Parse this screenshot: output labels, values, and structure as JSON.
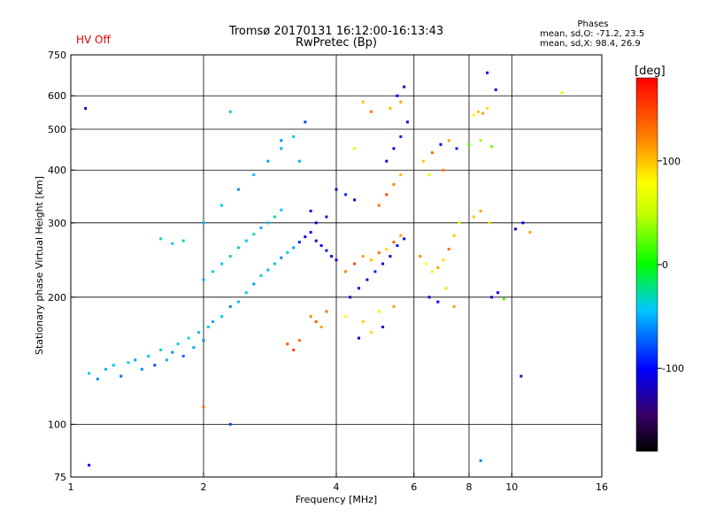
{
  "chart_data": {
    "type": "scatter",
    "title": "Tromsø 20170131 16:12:00-16:13:43",
    "subtitle": "RwPretec (Bp)",
    "status": "HV Off",
    "xlabel": "Frequency [MHz]",
    "ylabel": "Stationary phase Virtual Height [km]",
    "xscale": "log",
    "yscale": "log",
    "xlim": [
      1,
      16
    ],
    "ylim": [
      75,
      750
    ],
    "xticks": [
      1,
      2,
      4,
      6,
      8,
      10,
      16
    ],
    "xtick_labels": [
      "1",
      "2",
      "4",
      "6",
      "8",
      "10",
      "16"
    ],
    "xgrid": [
      2,
      4,
      6,
      8,
      10
    ],
    "yticks": [
      75,
      100,
      200,
      300,
      400,
      500,
      600,
      750
    ],
    "ytick_labels": [
      "75",
      "100",
      "200",
      "300",
      "400",
      "500",
      "600",
      "750"
    ],
    "ygrid": [
      100,
      200,
      300,
      400,
      500,
      600
    ],
    "grid": true,
    "colorbar": {
      "label": "[deg]",
      "range": [
        -180,
        180
      ],
      "ticks": [
        100,
        0,
        -100
      ],
      "tick_labels": [
        "100",
        "0",
        "-100"
      ],
      "colormap": "rainbow-black-to-red"
    },
    "stats": {
      "title": "Phases",
      "o_mode": "mean, sd,O: -71.2, 23.5",
      "x_mode": "mean, sd,X: 98.4, 26.9"
    },
    "series": [
      {
        "points": [
          [
            1.1,
            132,
            -40
          ],
          [
            1.15,
            128,
            -60
          ],
          [
            1.2,
            135,
            -50
          ],
          [
            1.25,
            138,
            -45
          ],
          [
            1.3,
            130,
            -70
          ],
          [
            1.35,
            140,
            -35
          ],
          [
            1.4,
            142,
            -55
          ],
          [
            1.45,
            135,
            -60
          ],
          [
            1.5,
            145,
            -40
          ],
          [
            1.55,
            138,
            -80
          ],
          [
            1.6,
            150,
            -30
          ],
          [
            1.65,
            142,
            -50
          ],
          [
            1.7,
            148,
            -60
          ],
          [
            1.75,
            155,
            -40
          ],
          [
            1.8,
            145,
            -70
          ],
          [
            1.85,
            160,
            -35
          ],
          [
            1.9,
            152,
            -55
          ],
          [
            1.95,
            165,
            -45
          ],
          [
            2.0,
            158,
            -60
          ],
          [
            2.05,
            170,
            -40
          ],
          [
            2.1,
            175,
            -50
          ],
          [
            2.2,
            180,
            -35
          ],
          [
            2.3,
            190,
            -60
          ],
          [
            2.4,
            195,
            -45
          ],
          [
            2.5,
            205,
            -40
          ],
          [
            2.6,
            215,
            -55
          ],
          [
            2.7,
            225,
            -35
          ],
          [
            2.8,
            232,
            -50
          ],
          [
            2.9,
            240,
            -45
          ],
          [
            3.0,
            248,
            -60
          ],
          [
            3.1,
            255,
            -40
          ],
          [
            3.2,
            262,
            -55
          ],
          [
            3.3,
            270,
            -90
          ],
          [
            3.4,
            278,
            -110
          ],
          [
            3.5,
            285,
            -100
          ],
          [
            3.6,
            272,
            -120
          ],
          [
            3.7,
            265,
            -105
          ],
          [
            3.8,
            258,
            -95
          ],
          [
            3.9,
            250,
            -115
          ],
          [
            4.0,
            245,
            -100
          ],
          [
            1.6,
            275,
            -30
          ],
          [
            1.7,
            268,
            -40
          ],
          [
            1.8,
            272,
            -35
          ],
          [
            2.0,
            220,
            -50
          ],
          [
            2.1,
            230,
            -30
          ],
          [
            2.2,
            240,
            -40
          ],
          [
            2.3,
            250,
            -20
          ],
          [
            2.4,
            262,
            -35
          ],
          [
            2.5,
            272,
            -45
          ],
          [
            2.6,
            282,
            -30
          ],
          [
            2.7,
            292,
            -50
          ],
          [
            2.8,
            300,
            -40
          ],
          [
            2.9,
            310,
            -25
          ],
          [
            3.0,
            322,
            -45
          ],
          [
            2.0,
            300,
            -50
          ],
          [
            2.2,
            330,
            -40
          ],
          [
            2.4,
            360,
            -60
          ],
          [
            2.6,
            390,
            -45
          ],
          [
            2.8,
            420,
            -55
          ],
          [
            3.0,
            450,
            -50
          ],
          [
            3.2,
            480,
            -40
          ],
          [
            3.4,
            520,
            -80
          ],
          [
            2.3,
            550,
            -40
          ],
          [
            3.0,
            470,
            -60
          ],
          [
            3.3,
            420,
            -50
          ],
          [
            3.5,
            180,
            120
          ],
          [
            3.6,
            175,
            140
          ],
          [
            3.7,
            170,
            110
          ],
          [
            3.8,
            185,
            130
          ],
          [
            4.2,
            230,
            120
          ],
          [
            4.4,
            240,
            150
          ],
          [
            4.6,
            250,
            110
          ],
          [
            4.8,
            245,
            100
          ],
          [
            5.0,
            255,
            130
          ],
          [
            5.2,
            260,
            90
          ],
          [
            5.4,
            270,
            140
          ],
          [
            5.6,
            280,
            110
          ],
          [
            4.3,
            200,
            -110
          ],
          [
            4.5,
            210,
            -100
          ],
          [
            4.7,
            220,
            -120
          ],
          [
            4.9,
            230,
            -90
          ],
          [
            5.1,
            240,
            -105
          ],
          [
            5.3,
            250,
            -115
          ],
          [
            5.5,
            265,
            -95
          ],
          [
            5.7,
            275,
            -100
          ],
          [
            4.2,
            180,
            80
          ],
          [
            4.6,
            175,
            95
          ],
          [
            5.0,
            185,
            60
          ],
          [
            5.4,
            190,
            110
          ],
          [
            5.0,
            330,
            130
          ],
          [
            5.2,
            350,
            150
          ],
          [
            5.4,
            370,
            120
          ],
          [
            5.6,
            390,
            100
          ],
          [
            5.2,
            420,
            -110
          ],
          [
            5.4,
            450,
            -100
          ],
          [
            5.6,
            480,
            -90
          ],
          [
            5.8,
            520,
            -120
          ],
          [
            5.3,
            560,
            100
          ],
          [
            5.5,
            600,
            -100
          ],
          [
            5.7,
            630,
            -110
          ],
          [
            5.6,
            580,
            110
          ],
          [
            4.4,
            450,
            60
          ],
          [
            4.8,
            550,
            130
          ],
          [
            4.6,
            580,
            100
          ],
          [
            6.2,
            250,
            120
          ],
          [
            6.4,
            240,
            80
          ],
          [
            6.6,
            230,
            60
          ],
          [
            6.8,
            235,
            110
          ],
          [
            7.0,
            245,
            90
          ],
          [
            7.2,
            260,
            130
          ],
          [
            7.4,
            280,
            100
          ],
          [
            7.6,
            300,
            70
          ],
          [
            6.3,
            420,
            100
          ],
          [
            6.6,
            440,
            130
          ],
          [
            6.9,
            460,
            -100
          ],
          [
            7.2,
            470,
            110
          ],
          [
            7.5,
            450,
            -90
          ],
          [
            6.5,
            390,
            60
          ],
          [
            7.0,
            400,
            120
          ],
          [
            6.5,
            200,
            -110
          ],
          [
            6.8,
            195,
            -100
          ],
          [
            7.1,
            210,
            90
          ],
          [
            7.4,
            190,
            110
          ],
          [
            8.2,
            540,
            80
          ],
          [
            8.4,
            550,
            100
          ],
          [
            8.6,
            545,
            110
          ],
          [
            8.8,
            560,
            90
          ],
          [
            8.0,
            460,
            20
          ],
          [
            8.5,
            470,
            40
          ],
          [
            9.0,
            455,
            30
          ],
          [
            8.2,
            310,
            100
          ],
          [
            8.5,
            320,
            110
          ],
          [
            8.9,
            300,
            90
          ],
          [
            9.0,
            200,
            -110
          ],
          [
            9.3,
            205,
            -100
          ],
          [
            9.6,
            198,
            20
          ],
          [
            10.2,
            290,
            -110
          ],
          [
            10.6,
            300,
            -100
          ],
          [
            11.0,
            285,
            110
          ],
          [
            8.8,
            680,
            -100
          ],
          [
            9.2,
            620,
            -110
          ],
          [
            13.0,
            610,
            60
          ],
          [
            3.1,
            155,
            140
          ],
          [
            3.2,
            150,
            150
          ],
          [
            3.3,
            158,
            130
          ],
          [
            2.3,
            100,
            -80
          ],
          [
            1.1,
            80,
            -100
          ],
          [
            1.08,
            560,
            -120
          ],
          [
            2.0,
            110,
            130
          ],
          [
            8.5,
            82,
            -60
          ],
          [
            10.5,
            130,
            -120
          ],
          [
            4.0,
            360,
            -100
          ],
          [
            4.2,
            350,
            -90
          ],
          [
            4.4,
            340,
            -110
          ],
          [
            3.6,
            300,
            -100
          ],
          [
            3.8,
            310,
            -95
          ],
          [
            3.5,
            320,
            -110
          ],
          [
            4.5,
            160,
            -100
          ],
          [
            4.8,
            165,
            90
          ],
          [
            5.1,
            170,
            -110
          ]
        ]
      }
    ]
  }
}
